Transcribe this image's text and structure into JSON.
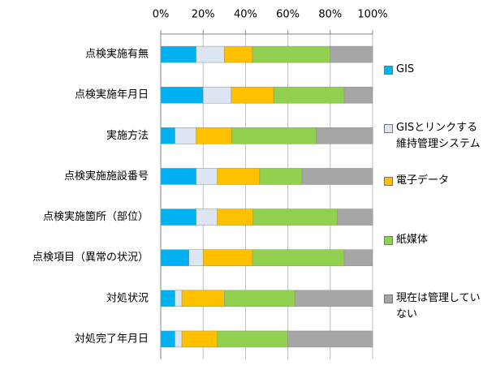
{
  "chart_data": {
    "type": "stacked_bar_horizontal",
    "categories": [
      "点検実施有無",
      "点検実施年月日",
      "実施方法",
      "点検実施施設番号",
      "点検実施箇所（部位）",
      "点検項目（異常の状況）",
      "対処状況",
      "対処完了年月日"
    ],
    "series": [
      {
        "name": "GIS",
        "color": "#00b0f0",
        "values": [
          16.7,
          20,
          6.7,
          16.7,
          16.7,
          13.3,
          6.7,
          6.7
        ]
      },
      {
        "name": "GISとリンクする維持管理システム",
        "color": "#dce6f2",
        "values": [
          13.3,
          13.3,
          10,
          10,
          10,
          6.7,
          3.3,
          3.3
        ]
      },
      {
        "name": "電子データ",
        "color": "#ffc000",
        "values": [
          13.3,
          20,
          16.7,
          20,
          16.7,
          23.3,
          20,
          16.7
        ]
      },
      {
        "name": "紙媒体",
        "color": "#92d050",
        "values": [
          36.7,
          33.3,
          40,
          20,
          40,
          43.3,
          33.3,
          33.3
        ]
      },
      {
        "name": "現在は管理していない",
        "color": "#a6a6a6",
        "values": [
          20,
          13.3,
          26.7,
          33.3,
          16.7,
          13.3,
          36.7,
          40
        ]
      }
    ],
    "xlim": [
      0,
      100
    ],
    "xticks": [
      {
        "value": 0,
        "label": "0%"
      },
      {
        "value": 20,
        "label": "20%"
      },
      {
        "value": 40,
        "label": "40%"
      },
      {
        "value": 60,
        "label": "60%"
      },
      {
        "value": 80,
        "label": "80%"
      },
      {
        "value": 100,
        "label": "100%"
      }
    ],
    "grid": true,
    "legend": "right"
  }
}
